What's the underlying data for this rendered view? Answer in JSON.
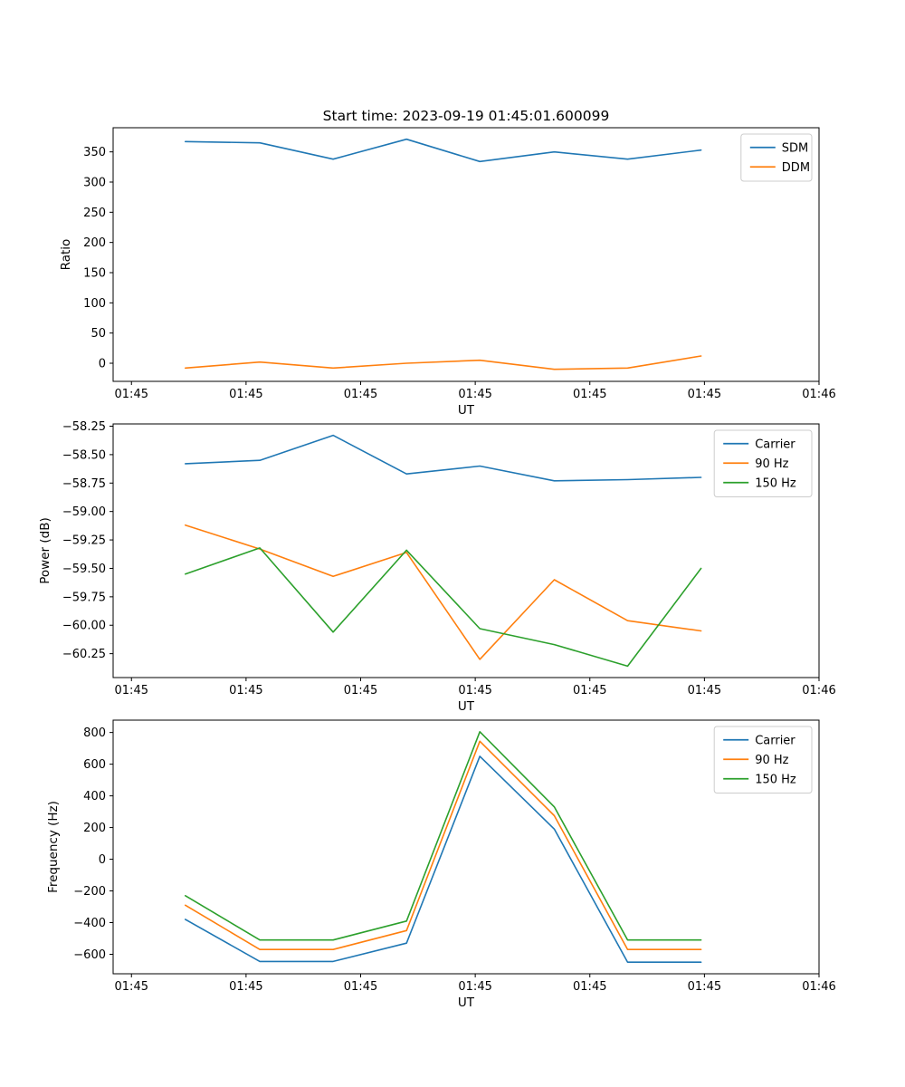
{
  "title": "Start time: 2023-09-19 01:45:01.600099",
  "colors": {
    "blue": "#1f77b4",
    "orange": "#ff7f0e",
    "green": "#2ca02c",
    "axes": "#000000",
    "legend_border": "#cccccc"
  },
  "chart_data": [
    {
      "id": "ratio",
      "type": "line",
      "xlabel": "UT",
      "ylabel": "Ratio",
      "xlim": [
        -1.6,
        60
      ],
      "ylim": [
        -30,
        390
      ],
      "grid": false,
      "legend": {
        "position": "upper right"
      },
      "x_ticks": [
        {
          "v": 0,
          "label": "01:45"
        },
        {
          "v": 10,
          "label": "01:45"
        },
        {
          "v": 20,
          "label": "01:45"
        },
        {
          "v": 30,
          "label": "01:45"
        },
        {
          "v": 40,
          "label": "01:45"
        },
        {
          "v": 50,
          "label": "01:45"
        },
        {
          "v": 60,
          "label": "01:46"
        }
      ],
      "y_ticks": [
        {
          "v": 0,
          "label": "0"
        },
        {
          "v": 50,
          "label": "50"
        },
        {
          "v": 100,
          "label": "100"
        },
        {
          "v": 150,
          "label": "150"
        },
        {
          "v": 200,
          "label": "200"
        },
        {
          "v": 250,
          "label": "250"
        },
        {
          "v": 300,
          "label": "300"
        },
        {
          "v": 350,
          "label": "350"
        }
      ],
      "x": [
        4.7,
        11.2,
        17.6,
        24.0,
        30.4,
        36.9,
        43.3,
        49.7
      ],
      "series": [
        {
          "name": "SDM",
          "color": "#1f77b4",
          "values": [
            367,
            365,
            338,
            371,
            334,
            350,
            338,
            353
          ]
        },
        {
          "name": "DDM",
          "color": "#ff7f0e",
          "values": [
            -8,
            2,
            -8,
            0,
            5,
            -10,
            -8,
            12
          ]
        }
      ]
    },
    {
      "id": "power",
      "type": "line",
      "xlabel": "UT",
      "ylabel": "Power (dB)",
      "xlim": [
        -1.6,
        60
      ],
      "ylim": [
        -60.46,
        -58.23
      ],
      "grid": false,
      "legend": {
        "position": "upper right"
      },
      "x_ticks": [
        {
          "v": 0,
          "label": "01:45"
        },
        {
          "v": 10,
          "label": "01:45"
        },
        {
          "v": 20,
          "label": "01:45"
        },
        {
          "v": 30,
          "label": "01:45"
        },
        {
          "v": 40,
          "label": "01:45"
        },
        {
          "v": 50,
          "label": "01:45"
        },
        {
          "v": 60,
          "label": "01:46"
        }
      ],
      "y_ticks": [
        {
          "v": -58.25,
          "label": "−58.25"
        },
        {
          "v": -58.5,
          "label": "−58.50"
        },
        {
          "v": -58.75,
          "label": "−58.75"
        },
        {
          "v": -59.0,
          "label": "−59.00"
        },
        {
          "v": -59.25,
          "label": "−59.25"
        },
        {
          "v": -59.5,
          "label": "−59.50"
        },
        {
          "v": -59.75,
          "label": "−59.75"
        },
        {
          "v": -60.0,
          "label": "−60.00"
        },
        {
          "v": -60.25,
          "label": "−60.25"
        }
      ],
      "x": [
        4.7,
        11.2,
        17.6,
        24.0,
        30.4,
        36.9,
        43.3,
        49.7
      ],
      "series": [
        {
          "name": "Carrier",
          "color": "#1f77b4",
          "values": [
            -58.58,
            -58.55,
            -58.33,
            -58.67,
            -58.6,
            -58.73,
            -58.72,
            -58.7
          ]
        },
        {
          "name": "90 Hz",
          "color": "#ff7f0e",
          "values": [
            -59.12,
            -59.33,
            -59.57,
            -59.36,
            -60.3,
            -59.6,
            -59.96,
            -60.05
          ]
        },
        {
          "name": "150 Hz",
          "color": "#2ca02c",
          "values": [
            -59.55,
            -59.32,
            -60.06,
            -59.34,
            -60.03,
            -60.17,
            -60.36,
            -59.5
          ]
        }
      ]
    },
    {
      "id": "frequency",
      "type": "line",
      "xlabel": "UT",
      "ylabel": "Frequency (Hz)",
      "xlim": [
        -1.6,
        60
      ],
      "ylim": [
        -723,
        878
      ],
      "grid": false,
      "legend": {
        "position": "upper right"
      },
      "x_ticks": [
        {
          "v": 0,
          "label": "01:45"
        },
        {
          "v": 10,
          "label": "01:45"
        },
        {
          "v": 20,
          "label": "01:45"
        },
        {
          "v": 30,
          "label": "01:45"
        },
        {
          "v": 40,
          "label": "01:45"
        },
        {
          "v": 50,
          "label": "01:45"
        },
        {
          "v": 60,
          "label": "01:46"
        }
      ],
      "y_ticks": [
        {
          "v": -600,
          "label": "−600"
        },
        {
          "v": -400,
          "label": "−400"
        },
        {
          "v": -200,
          "label": "−200"
        },
        {
          "v": 0,
          "label": "0"
        },
        {
          "v": 200,
          "label": "200"
        },
        {
          "v": 400,
          "label": "400"
        },
        {
          "v": 600,
          "label": "600"
        },
        {
          "v": 800,
          "label": "800"
        }
      ],
      "x": [
        4.7,
        11.2,
        17.6,
        24.0,
        30.4,
        36.9,
        43.3,
        49.7
      ],
      "series": [
        {
          "name": "Carrier",
          "color": "#1f77b4",
          "values": [
            -380,
            -645,
            -645,
            -530,
            650,
            190,
            -650,
            -650
          ]
        },
        {
          "name": "90 Hz",
          "color": "#ff7f0e",
          "values": [
            -290,
            -570,
            -570,
            -450,
            745,
            275,
            -570,
            -570
          ]
        },
        {
          "name": "150 Hz",
          "color": "#2ca02c",
          "values": [
            -230,
            -510,
            -510,
            -390,
            805,
            330,
            -510,
            -510
          ]
        }
      ]
    }
  ]
}
